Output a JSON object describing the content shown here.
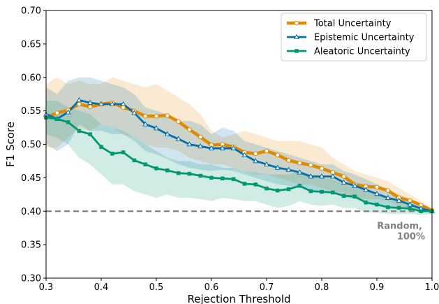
{
  "chart_data": {
    "type": "line",
    "xlabel": "Rejection Threshold",
    "ylabel": "F1 Score",
    "xlim": [
      0.3,
      1.0
    ],
    "ylim": [
      0.3,
      0.7
    ],
    "xticks": [
      "0.3",
      "0.4",
      "0.5",
      "0.6",
      "0.7",
      "0.8",
      "0.9",
      "1.0"
    ],
    "yticks": [
      "0.30",
      "0.35",
      "0.40",
      "0.45",
      "0.50",
      "0.55",
      "0.60",
      "0.65",
      "0.70"
    ],
    "grid": false,
    "legend_position": "top-right",
    "x": [
      0.3,
      0.32,
      0.34,
      0.36,
      0.38,
      0.4,
      0.42,
      0.44,
      0.46,
      0.48,
      0.5,
      0.52,
      0.54,
      0.56,
      0.58,
      0.6,
      0.62,
      0.64,
      0.66,
      0.68,
      0.7,
      0.72,
      0.74,
      0.76,
      0.78,
      0.8,
      0.82,
      0.84,
      0.86,
      0.88,
      0.9,
      0.92,
      0.94,
      0.96,
      0.98,
      1.0
    ],
    "series": [
      {
        "name": "Total Uncertainty",
        "color": "#e08a00",
        "marker": "circle",
        "values": [
          0.54,
          0.547,
          0.551,
          0.56,
          0.556,
          0.56,
          0.562,
          0.555,
          0.55,
          0.542,
          0.542,
          0.543,
          0.534,
          0.522,
          0.511,
          0.499,
          0.5,
          0.496,
          0.488,
          0.486,
          0.49,
          0.484,
          0.476,
          0.472,
          0.469,
          0.464,
          0.458,
          0.452,
          0.44,
          0.437,
          0.436,
          0.431,
          0.42,
          0.416,
          0.409,
          0.401
        ],
        "upper": [
          0.59,
          0.6,
          0.59,
          0.595,
          0.59,
          0.59,
          0.6,
          0.595,
          0.59,
          0.585,
          0.59,
          0.58,
          0.57,
          0.56,
          0.545,
          0.52,
          0.51,
          0.515,
          0.52,
          0.515,
          0.51,
          0.505,
          0.505,
          0.505,
          0.5,
          0.495,
          0.48,
          0.47,
          0.46,
          0.455,
          0.45,
          0.445,
          0.435,
          0.425,
          0.415,
          0.405
        ],
        "lower": [
          0.495,
          0.495,
          0.51,
          0.525,
          0.52,
          0.53,
          0.525,
          0.515,
          0.51,
          0.5,
          0.495,
          0.495,
          0.49,
          0.48,
          0.475,
          0.47,
          0.47,
          0.465,
          0.46,
          0.455,
          0.455,
          0.45,
          0.445,
          0.44,
          0.44,
          0.435,
          0.43,
          0.428,
          0.42,
          0.418,
          0.418,
          0.415,
          0.408,
          0.405,
          0.402,
          0.4
        ]
      },
      {
        "name": "Epistemic Uncertainty",
        "color": "#0070b0",
        "marker": "triangle",
        "values": [
          0.545,
          0.538,
          0.548,
          0.566,
          0.562,
          0.56,
          0.56,
          0.56,
          0.547,
          0.53,
          0.524,
          0.515,
          0.508,
          0.5,
          0.497,
          0.494,
          0.494,
          0.494,
          0.484,
          0.475,
          0.47,
          0.465,
          0.462,
          0.458,
          0.452,
          0.452,
          0.452,
          0.443,
          0.438,
          0.432,
          0.426,
          0.42,
          0.416,
          0.41,
          0.404,
          0.4
        ],
        "upper": [
          0.585,
          0.575,
          0.595,
          0.6,
          0.6,
          0.595,
          0.59,
          0.585,
          0.575,
          0.555,
          0.55,
          0.545,
          0.535,
          0.535,
          0.53,
          0.515,
          0.525,
          0.52,
          0.505,
          0.5,
          0.495,
          0.49,
          0.485,
          0.48,
          0.475,
          0.47,
          0.47,
          0.46,
          0.455,
          0.448,
          0.44,
          0.432,
          0.425,
          0.418,
          0.41,
          0.402
        ],
        "lower": [
          0.5,
          0.49,
          0.5,
          0.53,
          0.52,
          0.52,
          0.515,
          0.515,
          0.505,
          0.49,
          0.485,
          0.478,
          0.47,
          0.465,
          0.462,
          0.46,
          0.462,
          0.46,
          0.455,
          0.45,
          0.445,
          0.44,
          0.438,
          0.435,
          0.43,
          0.43,
          0.428,
          0.422,
          0.418,
          0.415,
          0.41,
          0.406,
          0.404,
          0.402,
          0.4,
          0.399
        ]
      },
      {
        "name": "Aleatoric Uncertainty",
        "color": "#009870",
        "marker": "square",
        "values": [
          0.54,
          0.538,
          0.533,
          0.52,
          0.515,
          0.496,
          0.486,
          0.488,
          0.476,
          0.47,
          0.464,
          0.461,
          0.457,
          0.456,
          0.453,
          0.45,
          0.449,
          0.448,
          0.441,
          0.44,
          0.434,
          0.431,
          0.433,
          0.438,
          0.43,
          0.429,
          0.428,
          0.423,
          0.422,
          0.413,
          0.41,
          0.406,
          0.405,
          0.404,
          0.4,
          0.4
        ],
        "upper": [
          0.565,
          0.565,
          0.555,
          0.55,
          0.545,
          0.53,
          0.525,
          0.52,
          0.51,
          0.5,
          0.49,
          0.48,
          0.475,
          0.475,
          0.47,
          0.47,
          0.465,
          0.465,
          0.46,
          0.458,
          0.455,
          0.455,
          0.455,
          0.46,
          0.455,
          0.45,
          0.448,
          0.44,
          0.435,
          0.43,
          0.425,
          0.42,
          0.415,
          0.41,
          0.405,
          0.402
        ],
        "lower": [
          0.515,
          0.51,
          0.5,
          0.48,
          0.47,
          0.455,
          0.44,
          0.44,
          0.43,
          0.425,
          0.42,
          0.425,
          0.42,
          0.42,
          0.418,
          0.415,
          0.42,
          0.418,
          0.415,
          0.415,
          0.41,
          0.405,
          0.408,
          0.415,
          0.41,
          0.408,
          0.41,
          0.405,
          0.405,
          0.398,
          0.398,
          0.396,
          0.396,
          0.396,
          0.394,
          0.396
        ]
      }
    ],
    "reference_line": {
      "y": 0.4,
      "color": "#808080",
      "style": "dashed"
    },
    "annotation": {
      "lines": [
        "Random,",
        "100%"
      ],
      "color": "#808080"
    }
  }
}
